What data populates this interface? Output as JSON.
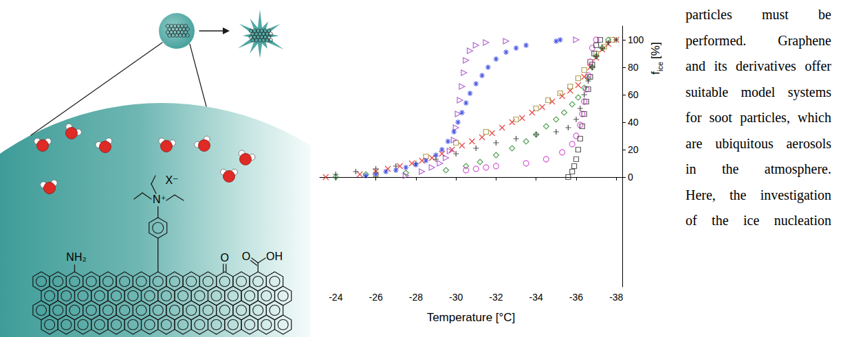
{
  "scheme": {
    "labels": {
      "amine": "NH₂",
      "ammonium": "N⁺",
      "counterion": "X⁻",
      "ketone": "O",
      "carboxyl_O": "O",
      "carboxyl_OH": "OH"
    }
  },
  "chart_data": {
    "type": "scatter",
    "xlabel": "Temperature [°C]",
    "ylabel": {
      "text": "f",
      "subscript": "ice",
      "unit": "[%]"
    },
    "xlim": [
      -23.2,
      -38.3
    ],
    "xticks": [
      -24,
      -26,
      -28,
      -30,
      -32,
      -34,
      -36,
      -38
    ],
    "ylim": [
      -80,
      110
    ],
    "yticks": [
      0,
      20,
      40,
      60,
      80,
      100
    ],
    "grid": false,
    "series": [
      {
        "color": "#e41a1c",
        "marker": "x",
        "x": [
          -23.5,
          -25.2,
          -26,
          -26.6,
          -27.2,
          -27.8,
          -28.3,
          -28.8,
          -29.3,
          -29.8,
          -30.3,
          -30.8,
          -31.3,
          -31.8,
          -32.3,
          -32.8,
          -33.3,
          -33.8,
          -34.3,
          -34.8,
          -35.3,
          -35.7,
          -36.1,
          -36.4,
          -36.7,
          -37,
          -37.3,
          -37.6,
          -38
        ],
        "values": [
          0,
          2,
          4,
          6,
          8,
          10,
          12,
          14,
          17,
          20,
          23,
          26,
          29,
          32,
          36,
          40,
          43,
          47,
          51,
          55,
          59,
          63,
          67,
          73,
          80,
          87,
          93,
          97,
          100
        ]
      },
      {
        "color": "#9c8a2a",
        "marker": "square",
        "x": [
          -26,
          -28.5,
          -30,
          -31.5,
          -33,
          -34,
          -34.6,
          -35.2,
          -35.7,
          -36.1,
          -36.4,
          -36.7,
          -37,
          -37.4,
          -37.8
        ],
        "values": [
          2,
          15,
          25,
          33,
          42,
          50,
          56,
          61,
          66,
          72,
          78,
          84,
          90,
          95,
          100
        ]
      },
      {
        "color": "#2e8b2e",
        "marker": "diamond",
        "x": [
          -24,
          -25.5,
          -27.5,
          -29.5,
          -30.5,
          -31.2,
          -32,
          -32.8,
          -33.5,
          -34,
          -34.5,
          -35,
          -35.4,
          -35.8,
          -36.1,
          -36.4,
          -36.6,
          -36.8,
          -37,
          -37.3,
          -37.6
        ],
        "values": [
          0,
          2,
          3,
          5,
          8,
          11,
          16,
          21,
          26,
          31,
          37,
          42,
          47,
          53,
          58,
          65,
          72,
          80,
          88,
          94,
          100
        ]
      },
      {
        "color": "#222222",
        "marker": "plus",
        "x": [
          -24,
          -25,
          -26,
          -27,
          -28,
          -29,
          -30,
          -31,
          -32,
          -33,
          -34,
          -35,
          -35.6,
          -36,
          -36.2,
          -36.4,
          -36.6,
          -36.8,
          -37,
          -37.3,
          -37.6,
          -38
        ],
        "values": [
          2,
          4,
          6,
          8,
          10,
          13,
          17,
          21,
          25,
          28,
          31,
          33,
          36,
          42,
          50,
          60,
          70,
          80,
          88,
          94,
          98,
          100
        ]
      },
      {
        "color": "#cc33cc",
        "marker": "circle",
        "x": [
          -30.5,
          -31,
          -31.5,
          -32,
          -33.5,
          -34.5,
          -35.3,
          -35.8,
          -36,
          -36.2,
          -36.3,
          -36.4,
          -36.5,
          -36.6,
          -36.7,
          -36.8,
          -37
        ],
        "values": [
          5,
          6,
          7,
          8,
          10,
          13,
          18,
          24,
          30,
          38,
          46,
          55,
          64,
          74,
          84,
          94,
          100
        ]
      },
      {
        "color": "#333333",
        "marker": "square",
        "x": [
          -35.6,
          -35.8,
          -35.9,
          -36,
          -36.1,
          -36.2,
          -36.3,
          -36.4,
          -36.5,
          -36.6,
          -36.7,
          -36.8,
          -36.9,
          -37,
          -37.2
        ],
        "values": [
          0,
          4,
          8,
          13,
          20,
          28,
          37,
          46,
          55,
          64,
          73,
          82,
          90,
          96,
          100
        ]
      },
      {
        "color": "#a040c8",
        "marker": "triangle-right",
        "x": [
          -27.5,
          -28.3,
          -28.8,
          -29.2,
          -29.5,
          -29.7,
          -29.9,
          -30,
          -30.1,
          -30.2,
          -30.3,
          -30.4,
          -30.5,
          -30.7,
          -31,
          -31.5,
          -32.5,
          -36
        ],
        "values": [
          1,
          4,
          7,
          10,
          14,
          19,
          27,
          36,
          46,
          56,
          66,
          76,
          85,
          92,
          96,
          98,
          99,
          100
        ]
      },
      {
        "color": "#2233dd",
        "marker": "star",
        "x": [
          -25.5,
          -26,
          -26.5,
          -27,
          -27.5,
          -28,
          -28.5,
          -29,
          -29.3,
          -29.6,
          -29.9,
          -30.1,
          -30.3,
          -30.5,
          -30.7,
          -31,
          -31.3,
          -31.6,
          -32,
          -32.5,
          -33,
          -33.5,
          -35,
          -35.2
        ],
        "values": [
          1,
          2,
          4,
          5,
          7,
          9,
          12,
          16,
          20,
          26,
          33,
          40,
          47,
          54,
          61,
          68,
          74,
          80,
          86,
          91,
          94,
          96,
          99,
          100
        ]
      }
    ]
  },
  "body_text": {
    "lines": [
      "particles must be",
      "performed. Graphene",
      "and its derivatives offer",
      "suitable model systems",
      "for soot particles, which",
      "are ubiquitous aerosols",
      "in the atmosphere.",
      "Here, the investigation",
      "of the ice nucleation"
    ]
  }
}
